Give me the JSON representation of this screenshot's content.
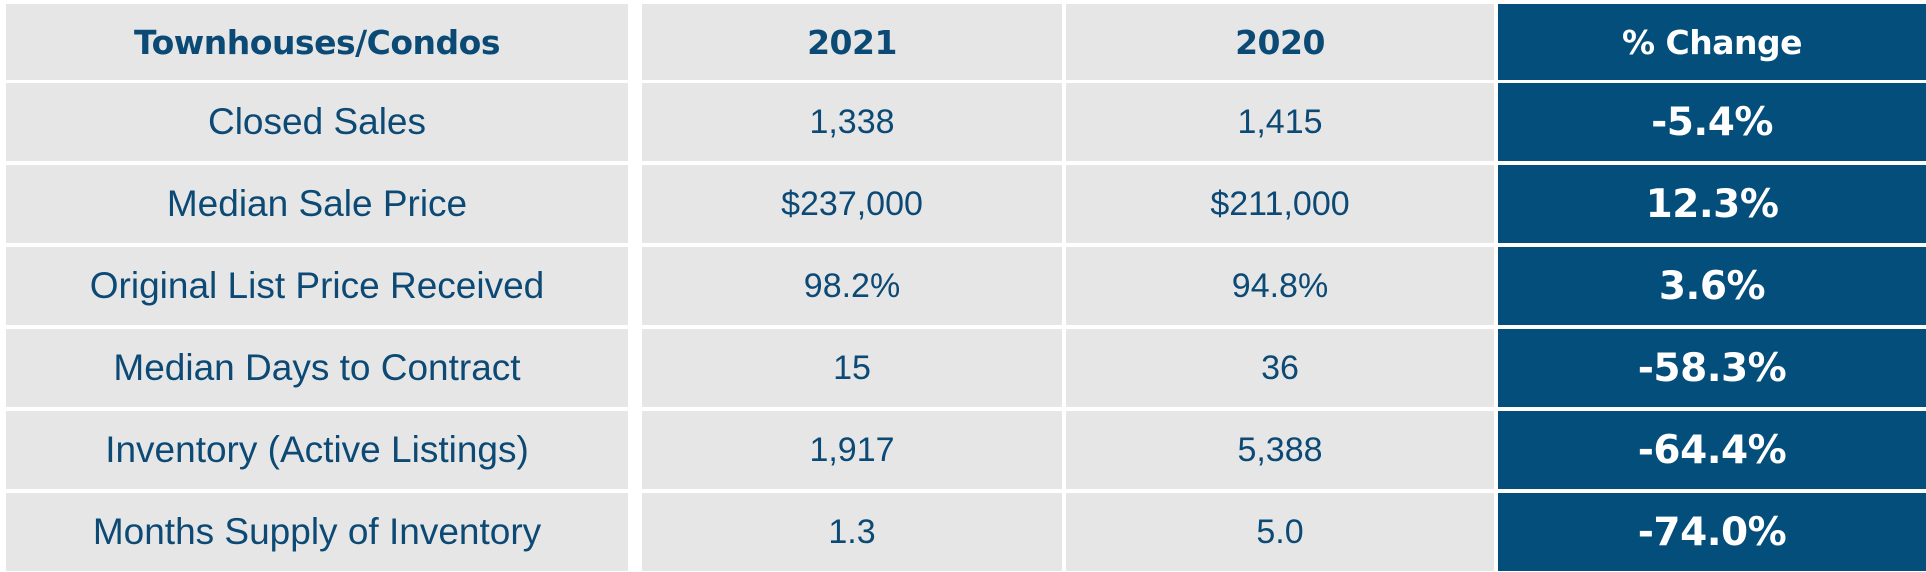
{
  "chart_data": {
    "type": "table",
    "columns": [
      "Townhouses/Condos",
      "2021",
      "2020",
      "% Change"
    ],
    "rows": [
      [
        "Closed Sales",
        "1,338",
        "1,415",
        "-5.4%"
      ],
      [
        "Median Sale Price",
        "$237,000",
        "$211,000",
        "12.3%"
      ],
      [
        "Original List Price Received",
        "98.2%",
        "94.8%",
        "3.6%"
      ],
      [
        "Median Days to Contract",
        "15",
        "36",
        "-58.3%"
      ],
      [
        "Inventory (Active Listings)",
        "1,917",
        "5,388",
        "-64.4%"
      ],
      [
        "Months Supply of Inventory",
        "1.3",
        "5.0",
        "-74.0%"
      ]
    ]
  },
  "colors": {
    "cell_background": "#e6e6e6",
    "change_column_background": "#044e7c",
    "text_navy": "#0c4a75",
    "text_white": "#ffffff",
    "grid_lines": "#ffffff"
  }
}
